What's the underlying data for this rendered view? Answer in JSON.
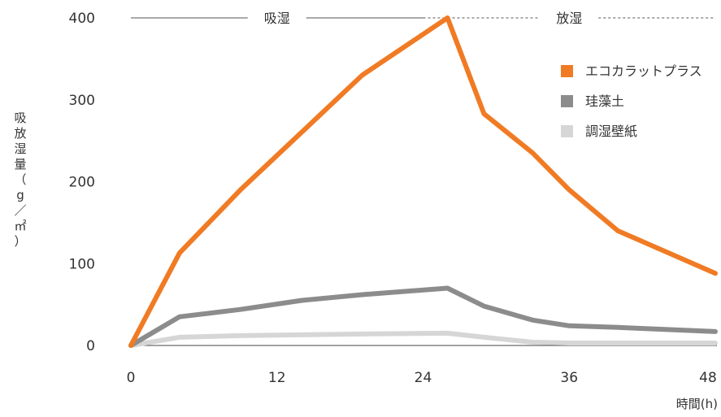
{
  "chart_data": {
    "type": "line",
    "x": [
      0,
      4,
      9,
      14,
      19,
      26,
      29,
      33,
      36,
      40,
      48
    ],
    "xlim": [
      0,
      48
    ],
    "ylim": [
      0,
      400
    ],
    "xticks": [
      "0",
      "12",
      "24",
      "36",
      "48"
    ],
    "yticks": [
      "0",
      "100",
      "200",
      "300",
      "400"
    ],
    "xlabel": "時間(h)",
    "ylabel": "吸放湿量（g／㎡）",
    "ylabel_chars": [
      "吸",
      "放",
      "湿",
      "量",
      "（",
      "g",
      "／",
      "㎡",
      "）"
    ],
    "phases": [
      {
        "label": "吸湿",
        "x_range": [
          0,
          24
        ]
      },
      {
        "label": "放湿",
        "x_range": [
          24,
          48
        ]
      }
    ],
    "legend_position": "top-right",
    "series": [
      {
        "name": "エコカラットプラス",
        "color": "#f07b24",
        "values": [
          0,
          113,
          190,
          260,
          330,
          400,
          283,
          235,
          190,
          140,
          88
        ]
      },
      {
        "name": "珪藻土",
        "color": "#8c8c8c",
        "values": [
          0,
          35,
          44,
          55,
          62,
          70,
          48,
          31,
          24,
          22,
          17
        ]
      },
      {
        "name": "調湿壁紙",
        "color": "#d6d6d6",
        "values": [
          0,
          10,
          12,
          13,
          14,
          15,
          10,
          4,
          3,
          3,
          3
        ]
      }
    ]
  }
}
